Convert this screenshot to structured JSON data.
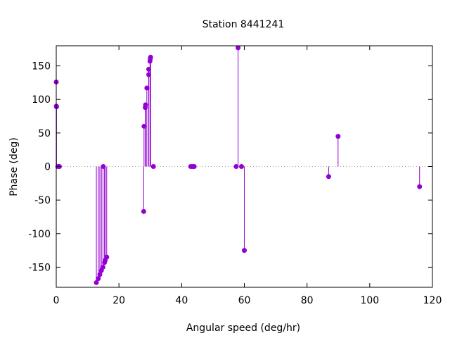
{
  "chart_data": {
    "type": "scatter",
    "style": "impulses-with-points",
    "title": "Station 8441241",
    "xlabel": "Angular speed (deg/hr)",
    "ylabel": "Phase (deg)",
    "xlim": [
      0,
      120
    ],
    "ylim": [
      -180,
      180
    ],
    "xticks": [
      0,
      20,
      40,
      60,
      80,
      100,
      120
    ],
    "yticks": [
      -150,
      -100,
      -50,
      0,
      50,
      100,
      150
    ],
    "grid": false,
    "zero_line": "dotted",
    "color": "#9400d3",
    "points": [
      {
        "x": 0.0,
        "y": 126
      },
      {
        "x": 0.04,
        "y": 90
      },
      {
        "x": 0.08,
        "y": 89
      },
      {
        "x": 0.5,
        "y": 0
      },
      {
        "x": 1.0,
        "y": 0
      },
      {
        "x": 12.8,
        "y": -173
      },
      {
        "x": 13.4,
        "y": -167
      },
      {
        "x": 13.9,
        "y": -161
      },
      {
        "x": 14.4,
        "y": -155
      },
      {
        "x": 14.9,
        "y": -150
      },
      {
        "x": 15.0,
        "y": 0
      },
      {
        "x": 15.4,
        "y": -143
      },
      {
        "x": 15.6,
        "y": -140
      },
      {
        "x": 16.1,
        "y": -135
      },
      {
        "x": 27.9,
        "y": -67
      },
      {
        "x": 28.0,
        "y": 60
      },
      {
        "x": 28.4,
        "y": 88
      },
      {
        "x": 28.5,
        "y": 92
      },
      {
        "x": 28.9,
        "y": 117
      },
      {
        "x": 29.5,
        "y": 137
      },
      {
        "x": 29.5,
        "y": 145
      },
      {
        "x": 29.9,
        "y": 157
      },
      {
        "x": 30.0,
        "y": 161
      },
      {
        "x": 30.1,
        "y": 163
      },
      {
        "x": 31.0,
        "y": 0
      },
      {
        "x": 42.9,
        "y": 0
      },
      {
        "x": 43.5,
        "y": 0
      },
      {
        "x": 44.0,
        "y": 0
      },
      {
        "x": 57.4,
        "y": 0
      },
      {
        "x": 58.0,
        "y": 177
      },
      {
        "x": 59.1,
        "y": 0
      },
      {
        "x": 60.0,
        "y": -125
      },
      {
        "x": 86.9,
        "y": -15
      },
      {
        "x": 89.9,
        "y": 45
      },
      {
        "x": 115.9,
        "y": -30
      }
    ]
  }
}
